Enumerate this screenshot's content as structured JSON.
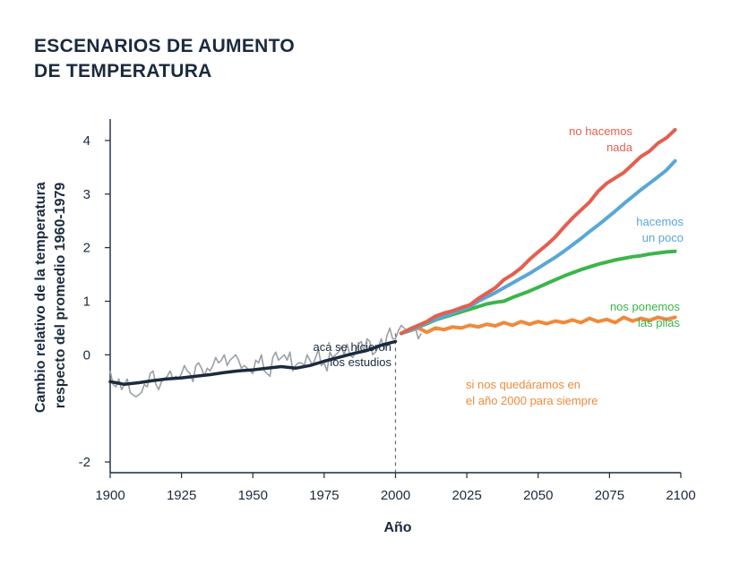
{
  "chart_data": {
    "type": "line",
    "title_lines": [
      "ESCENARIOS DE AUMENTO",
      "DE TEMPERATURA"
    ],
    "xlabel": "Año",
    "ylabel_lines": [
      "Cambio relativo de la temperatura",
      "respecto del promedio 1960-1979"
    ],
    "xlim": [
      1900,
      2100
    ],
    "ylim": [
      -2.2,
      4.4
    ],
    "x_ticks": [
      1900,
      1925,
      1950,
      1975,
      2000,
      2025,
      2050,
      2075,
      2100
    ],
    "y_ticks": [
      -2,
      0,
      1,
      2,
      3,
      4
    ],
    "divider_year": 2000,
    "annotation": {
      "lines": [
        "acá se hicieron",
        "los estudios"
      ],
      "x": 2000,
      "y": 0.75
    },
    "colors": {
      "title": "#1b2a3d",
      "axis": "#1b2a3d",
      "observed": "#9aa0a6",
      "historical": "#1b2a3d",
      "nada": "#e35f50",
      "poco": "#5aa7d6",
      "pilas": "#3cb54a",
      "quedaramos": "#ef8a3b"
    },
    "observed": {
      "name": "Observaciones",
      "x": [
        1900,
        1901,
        1902,
        1903,
        1904,
        1905,
        1906,
        1907,
        1908,
        1909,
        1910,
        1911,
        1912,
        1913,
        1914,
        1915,
        1916,
        1917,
        1918,
        1919,
        1920,
        1921,
        1922,
        1923,
        1924,
        1925,
        1926,
        1927,
        1928,
        1929,
        1930,
        1931,
        1932,
        1933,
        1934,
        1935,
        1936,
        1937,
        1938,
        1939,
        1940,
        1941,
        1942,
        1943,
        1944,
        1945,
        1946,
        1947,
        1948,
        1949,
        1950,
        1951,
        1952,
        1953,
        1954,
        1955,
        1956,
        1957,
        1958,
        1959,
        1960,
        1961,
        1962,
        1963,
        1964,
        1965,
        1966,
        1967,
        1968,
        1969,
        1970,
        1971,
        1972,
        1973,
        1974,
        1975,
        1976,
        1977,
        1978,
        1979,
        1980,
        1981,
        1982,
        1983,
        1984,
        1985,
        1986,
        1987,
        1988,
        1989,
        1990,
        1991,
        1992,
        1993,
        1994,
        1995,
        1996,
        1997,
        1998,
        1999,
        2000,
        2001,
        2002,
        2003,
        2004,
        2005,
        2006,
        2007,
        2008,
        2009
      ],
      "y": [
        -0.3,
        -0.55,
        -0.6,
        -0.45,
        -0.65,
        -0.55,
        -0.45,
        -0.7,
        -0.75,
        -0.78,
        -0.75,
        -0.7,
        -0.55,
        -0.6,
        -0.35,
        -0.3,
        -0.55,
        -0.65,
        -0.5,
        -0.45,
        -0.4,
        -0.3,
        -0.45,
        -0.4,
        -0.45,
        -0.35,
        -0.2,
        -0.3,
        -0.35,
        -0.5,
        -0.2,
        -0.15,
        -0.25,
        -0.4,
        -0.25,
        -0.3,
        -0.2,
        -0.05,
        -0.15,
        -0.1,
        0.0,
        -0.2,
        -0.1,
        -0.05,
        0.0,
        -0.1,
        -0.25,
        -0.2,
        -0.25,
        -0.3,
        -0.35,
        -0.1,
        -0.15,
        0.0,
        -0.3,
        -0.35,
        -0.4,
        -0.05,
        0.05,
        -0.1,
        -0.05,
        0.0,
        -0.1,
        0.05,
        -0.3,
        -0.2,
        -0.15,
        -0.15,
        -0.2,
        0.0,
        -0.1,
        -0.2,
        -0.05,
        0.1,
        -0.2,
        -0.15,
        -0.3,
        0.05,
        -0.05,
        0.0,
        0.05,
        0.15,
        0.0,
        0.2,
        0.0,
        -0.05,
        0.05,
        0.2,
        0.25,
        0.05,
        0.3,
        0.25,
        0.0,
        0.05,
        0.15,
        0.3,
        0.1,
        0.35,
        0.5,
        0.3,
        0.3,
        0.45,
        0.55,
        0.5,
        0.45,
        0.5,
        0.45,
        0.5,
        0.3,
        0.4
      ]
    },
    "series": [
      {
        "name": "Histórico",
        "x": [
          1900,
          1905,
          1910,
          1915,
          1920,
          1925,
          1930,
          1935,
          1940,
          1945,
          1950,
          1955,
          1960,
          1965,
          1970,
          1975,
          1980,
          1985,
          1990,
          1995,
          2000
        ],
        "y": [
          -0.5,
          -0.55,
          -0.52,
          -0.48,
          -0.45,
          -0.43,
          -0.4,
          -0.37,
          -0.33,
          -0.3,
          -0.28,
          -0.25,
          -0.22,
          -0.25,
          -0.2,
          -0.12,
          -0.05,
          0.02,
          0.08,
          0.18,
          0.25
        ]
      },
      {
        "name": "nada",
        "label_lines": [
          "no hacemos",
          "nada"
        ],
        "x": [
          2002,
          2005,
          2008,
          2011,
          2014,
          2017,
          2020,
          2023,
          2026,
          2029,
          2032,
          2035,
          2038,
          2041,
          2044,
          2047,
          2050,
          2053,
          2056,
          2059,
          2062,
          2065,
          2068,
          2071,
          2074,
          2077,
          2080,
          2083,
          2086,
          2089,
          2092,
          2095,
          2098
        ],
        "y": [
          0.4,
          0.48,
          0.55,
          0.62,
          0.72,
          0.78,
          0.82,
          0.88,
          0.93,
          1.05,
          1.15,
          1.25,
          1.4,
          1.5,
          1.62,
          1.78,
          1.92,
          2.05,
          2.2,
          2.38,
          2.55,
          2.7,
          2.85,
          3.05,
          3.2,
          3.3,
          3.4,
          3.55,
          3.7,
          3.8,
          3.95,
          4.05,
          4.2
        ]
      },
      {
        "name": "poco",
        "label_lines": [
          "hacemos",
          "un poco"
        ],
        "x": [
          2002,
          2005,
          2008,
          2011,
          2014,
          2017,
          2020,
          2023,
          2026,
          2029,
          2032,
          2035,
          2038,
          2041,
          2044,
          2047,
          2050,
          2053,
          2056,
          2059,
          2062,
          2065,
          2068,
          2071,
          2074,
          2077,
          2080,
          2083,
          2086,
          2089,
          2092,
          2095,
          2098
        ],
        "y": [
          0.4,
          0.46,
          0.52,
          0.6,
          0.66,
          0.72,
          0.78,
          0.84,
          0.9,
          1.0,
          1.08,
          1.16,
          1.25,
          1.34,
          1.43,
          1.52,
          1.62,
          1.72,
          1.82,
          1.93,
          2.05,
          2.17,
          2.3,
          2.42,
          2.55,
          2.68,
          2.82,
          2.95,
          3.08,
          3.2,
          3.32,
          3.45,
          3.62
        ]
      },
      {
        "name": "pilas",
        "label_lines": [
          "nos ponemos",
          "las pilas"
        ],
        "x": [
          2002,
          2005,
          2008,
          2011,
          2014,
          2017,
          2020,
          2023,
          2026,
          2029,
          2032,
          2035,
          2038,
          2041,
          2044,
          2047,
          2050,
          2053,
          2056,
          2059,
          2062,
          2065,
          2068,
          2071,
          2074,
          2077,
          2080,
          2083,
          2086,
          2089,
          2092,
          2095,
          2098
        ],
        "y": [
          0.4,
          0.45,
          0.52,
          0.58,
          0.65,
          0.7,
          0.75,
          0.8,
          0.85,
          0.9,
          0.95,
          0.98,
          1.0,
          1.07,
          1.13,
          1.19,
          1.26,
          1.33,
          1.4,
          1.47,
          1.53,
          1.59,
          1.64,
          1.69,
          1.73,
          1.77,
          1.8,
          1.83,
          1.85,
          1.88,
          1.9,
          1.92,
          1.93
        ]
      },
      {
        "name": "quedaramos",
        "label_lines": [
          "si nos quedáramos en",
          "el año 2000 para siempre"
        ],
        "x": [
          2002,
          2005,
          2008,
          2011,
          2014,
          2017,
          2020,
          2023,
          2026,
          2029,
          2032,
          2035,
          2038,
          2041,
          2044,
          2047,
          2050,
          2053,
          2056,
          2059,
          2062,
          2065,
          2068,
          2071,
          2074,
          2077,
          2080,
          2083,
          2086,
          2089,
          2092,
          2095,
          2098
        ],
        "y": [
          0.4,
          0.45,
          0.5,
          0.42,
          0.5,
          0.47,
          0.52,
          0.5,
          0.55,
          0.52,
          0.57,
          0.54,
          0.6,
          0.55,
          0.62,
          0.57,
          0.62,
          0.58,
          0.63,
          0.6,
          0.65,
          0.6,
          0.68,
          0.62,
          0.66,
          0.6,
          0.7,
          0.63,
          0.68,
          0.64,
          0.7,
          0.66,
          0.7
        ]
      }
    ]
  }
}
